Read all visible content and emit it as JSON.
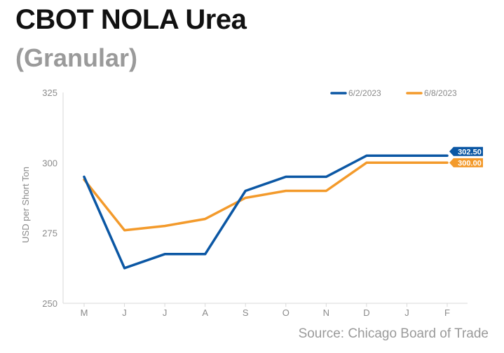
{
  "header": {
    "title": "CBOT NOLA Urea",
    "subtitle": "(Granular)"
  },
  "footer": {
    "source": "Source: Chicago Board of Trade"
  },
  "chart_data": {
    "type": "line",
    "title": "CBOT NOLA Urea",
    "subtitle": "(Granular)",
    "xlabel": "",
    "ylabel": "USD per Short Ton",
    "ylim": [
      250,
      325
    ],
    "yticks": [
      250,
      275,
      300,
      325
    ],
    "categories": [
      "M",
      "J",
      "J",
      "A",
      "S",
      "O",
      "N",
      "D",
      "J",
      "F"
    ],
    "series": [
      {
        "name": "6/2/2023",
        "color": "#0b57a4",
        "values": [
          295,
          262.5,
          267.5,
          267.5,
          290,
          295,
          295,
          302.5,
          302.5,
          302.5
        ],
        "end_label": "302.50"
      },
      {
        "name": "6/8/2023",
        "color": "#f39a2b",
        "values": [
          294,
          276,
          277.5,
          280,
          287.5,
          290,
          290,
          300,
          300,
          300
        ],
        "end_label": "300.00"
      }
    ],
    "legend_position": "top-right",
    "grid": false
  }
}
